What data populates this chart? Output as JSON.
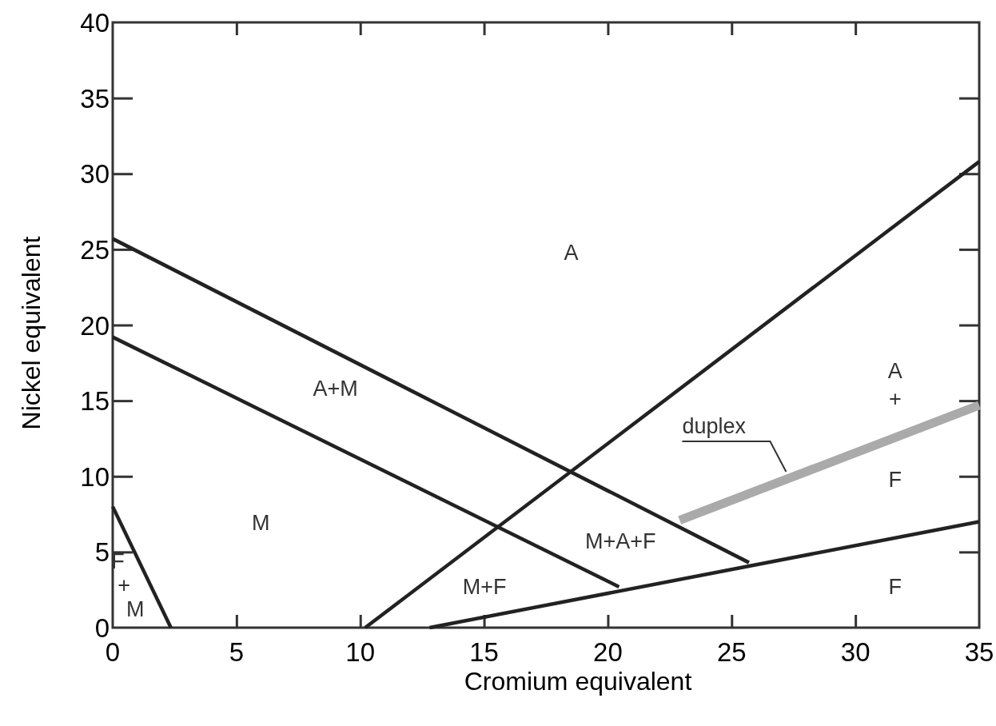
{
  "chart_data": {
    "type": "line",
    "xlabel": "Cromium equivalent",
    "ylabel": "Nickel equivalent",
    "xlim": [
      0,
      35
    ],
    "ylim": [
      0,
      40
    ],
    "xticks": [
      0,
      5,
      10,
      15,
      20,
      25,
      30,
      35
    ],
    "yticks": [
      0,
      5,
      10,
      15,
      20,
      25,
      30,
      35,
      40
    ],
    "grid": false,
    "marker": "none",
    "line_style": "solid",
    "series": [
      {
        "color": "#222222",
        "x": [
          0,
          25.7
        ],
        "values": [
          25.7,
          4.3
        ]
      },
      {
        "color": "#222222",
        "x": [
          0,
          20.45
        ],
        "values": [
          19.2,
          2.7
        ]
      },
      {
        "color": "#222222",
        "x": [
          10.2,
          35
        ],
        "values": [
          0,
          30.8
        ]
      },
      {
        "color": "#222222",
        "x": [
          12.8,
          35
        ],
        "values": [
          0,
          7
        ]
      },
      {
        "color": "#222222",
        "x": [
          0,
          2.35
        ],
        "values": [
          8,
          0
        ]
      },
      {
        "color": "#aaaaaa",
        "x": [
          22.9,
          35
        ],
        "values": [
          7.1,
          14.7
        ]
      }
    ],
    "annotations": [
      "A",
      "A+M",
      "M",
      "M+A+F",
      "M+F",
      "F",
      "+",
      "M",
      "A",
      "+",
      "F",
      "F",
      {
        "text": "duplex",
        "x": 27.2,
        "y": 10.3
      }
    ]
  }
}
